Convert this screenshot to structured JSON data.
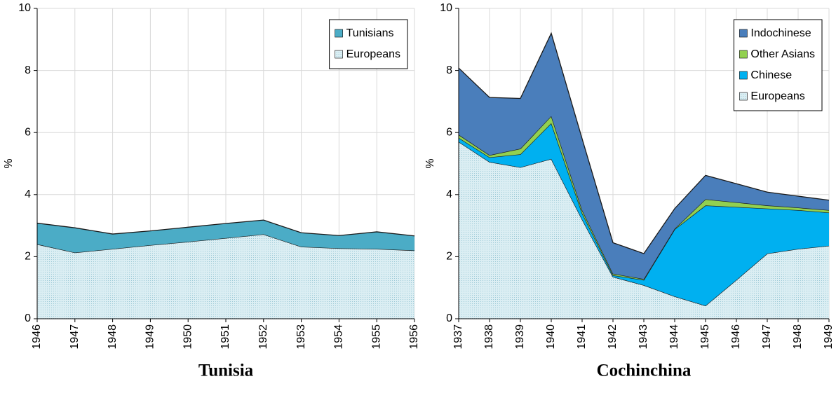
{
  "chart_data": [
    {
      "type": "area",
      "title": "Tunisia",
      "y_label": "%",
      "categories": [
        "1946",
        "1947",
        "1948",
        "1949",
        "1950",
        "1951",
        "1952",
        "1953",
        "1954",
        "1955",
        "1956"
      ],
      "series": [
        {
          "name": "Europeans",
          "color": "#dbeef3",
          "values": [
            2.4,
            2.13,
            2.25,
            2.37,
            2.48,
            2.6,
            2.72,
            2.32,
            2.27,
            2.25,
            2.2
          ]
        },
        {
          "name": "Tunisians",
          "color": "#4bacc6",
          "values": [
            0.68,
            0.8,
            0.48,
            0.46,
            0.47,
            0.47,
            0.46,
            0.45,
            0.41,
            0.55,
            0.47
          ]
        }
      ],
      "ylim": [
        0,
        10
      ],
      "yticks": [
        0,
        2,
        4,
        6,
        8,
        10
      ],
      "grid": true,
      "legend": "upper right"
    },
    {
      "type": "area",
      "title": "Cochinchina",
      "y_label": "%",
      "categories": [
        "1937",
        "1938",
        "1939",
        "1940",
        "1941",
        "1942",
        "1943",
        "1944",
        "1945",
        "1946",
        "1947",
        "1948",
        "1949"
      ],
      "series": [
        {
          "name": "Europeans",
          "color": "#dbeef3",
          "values": [
            5.7,
            5.05,
            4.88,
            5.15,
            3.2,
            1.35,
            1.08,
            0.72,
            0.42,
            1.25,
            2.1,
            2.25,
            2.35
          ]
        },
        {
          "name": "Chinese",
          "color": "#00b0f0",
          "values": [
            0.13,
            0.15,
            0.42,
            1.15,
            0.2,
            0.05,
            0.17,
            2.16,
            3.23,
            2.35,
            1.45,
            1.25,
            1.07
          ]
        },
        {
          "name": "Other Asians",
          "color": "#92d050",
          "values": [
            0.1,
            0.07,
            0.18,
            0.23,
            0.1,
            0.05,
            0.03,
            0.02,
            0.2,
            0.15,
            0.1,
            0.08,
            0.08
          ]
        },
        {
          "name": "Indochinese",
          "color": "#4a7ebb",
          "values": [
            2.15,
            1.86,
            1.62,
            2.67,
            2.3,
            1.0,
            0.82,
            0.65,
            0.77,
            0.6,
            0.43,
            0.37,
            0.32
          ]
        }
      ],
      "ylim": [
        0,
        10
      ],
      "yticks": [
        0,
        2,
        4,
        6,
        8,
        10
      ],
      "grid": true,
      "legend": "upper right"
    }
  ]
}
